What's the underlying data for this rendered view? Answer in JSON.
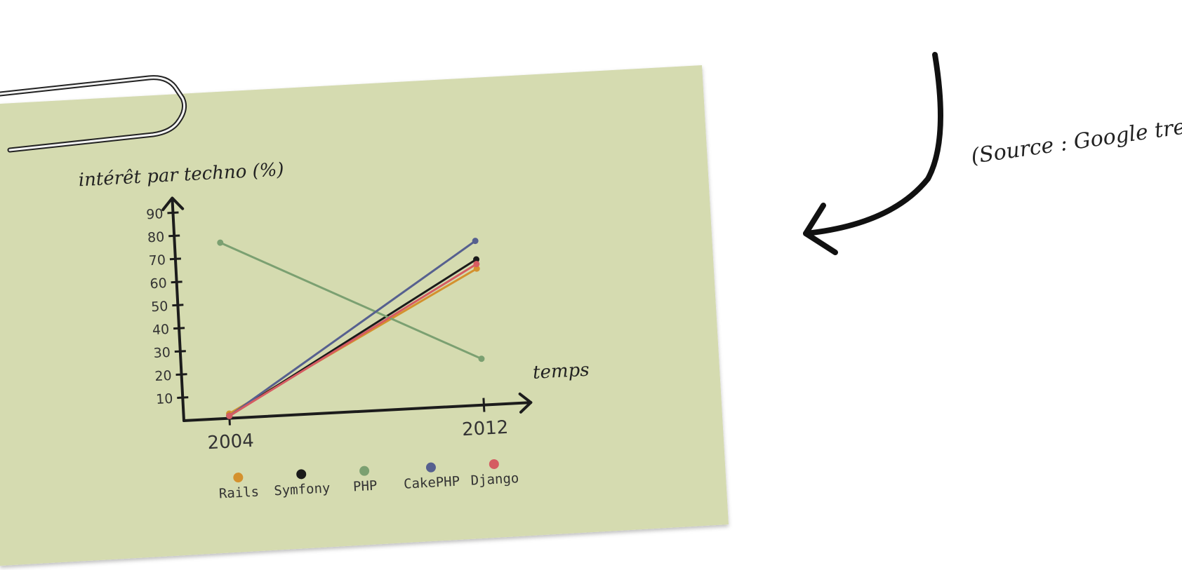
{
  "colors": {
    "card": "#d5dbb0",
    "axis": "#1c1c1c",
    "rails": "#d4912e",
    "symfony": "#1a1a1a",
    "php": "#7ba071",
    "cakephp": "#56608f",
    "django": "#d55c62"
  },
  "annotation": {
    "source": "(Source : Google trend)",
    "arrow_icon": "curved-arrow-icon",
    "clip_icon": "paperclip-icon"
  },
  "chart_data": {
    "type": "line",
    "title": "",
    "ylabel": "intérêt par techno (%)",
    "xlabel": "temps",
    "x": [
      "2004",
      "2012"
    ],
    "yticks": [
      10,
      20,
      30,
      40,
      50,
      60,
      70,
      80,
      90
    ],
    "ylim": [
      0,
      100
    ],
    "grid": false,
    "legend": "bottom",
    "series": [
      {
        "name": "Rails",
        "values": [
          2,
          59
        ],
        "color": "#d4912e"
      },
      {
        "name": "Symfony",
        "values": [
          1,
          63
        ],
        "color": "#1a1a1a"
      },
      {
        "name": "PHP",
        "values": [
          76,
          20
        ],
        "color": "#7ba071"
      },
      {
        "name": "CakePHP",
        "values": [
          1,
          71
        ],
        "color": "#56608f"
      },
      {
        "name": "Django",
        "values": [
          1,
          61
        ],
        "color": "#d55c62"
      }
    ]
  }
}
